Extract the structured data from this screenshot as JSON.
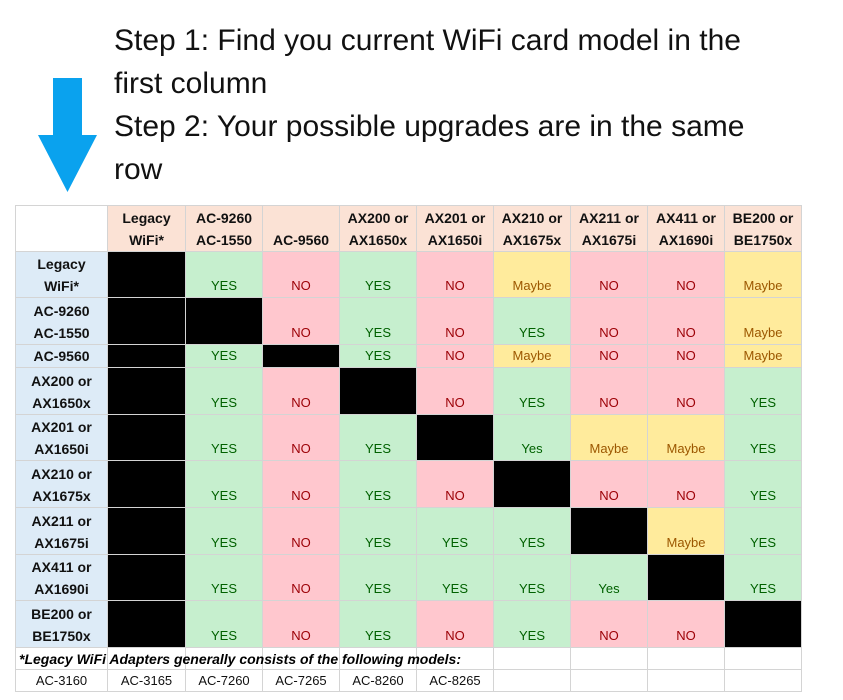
{
  "steps": [
    [
      "Step 1: Find you current WiFi card model in the",
      "first column"
    ],
    [
      "Step 2: Your possible upgrades are in the same",
      "row"
    ]
  ],
  "table": {
    "columns": [
      [
        "Legacy",
        "WiFi*"
      ],
      [
        "AC-9260",
        "AC-1550"
      ],
      [
        "AC-9560"
      ],
      [
        "AX200 or",
        "AX1650x"
      ],
      [
        "AX201 or",
        "AX1650i"
      ],
      [
        "AX210 or",
        "AX1675x"
      ],
      [
        "AX211 or",
        "AX1675i"
      ],
      [
        "AX411 or",
        "AX1690i"
      ],
      [
        "BE200 or",
        "BE1750x"
      ]
    ],
    "rows": [
      {
        "label": [
          "Legacy",
          "WiFi*"
        ],
        "cells": [
          null,
          "YES",
          "NO",
          "YES",
          "NO",
          "Maybe",
          "NO",
          "NO",
          "Maybe"
        ]
      },
      {
        "label": [
          "AC-9260",
          "AC-1550"
        ],
        "cells": [
          null,
          null,
          "NO",
          "YES",
          "NO",
          "YES",
          "NO",
          "NO",
          "Maybe"
        ]
      },
      {
        "label": [
          "AC-9560"
        ],
        "cells": [
          null,
          "YES",
          null,
          "YES",
          "NO",
          "Maybe",
          "NO",
          "NO",
          "Maybe"
        ]
      },
      {
        "label": [
          "AX200 or",
          "AX1650x"
        ],
        "cells": [
          null,
          "YES",
          "NO",
          null,
          "NO",
          "YES",
          "NO",
          "NO",
          "YES"
        ]
      },
      {
        "label": [
          "AX201 or",
          "AX1650i"
        ],
        "cells": [
          null,
          "YES",
          "NO",
          "YES",
          null,
          "Yes",
          "Maybe",
          "Maybe",
          "YES"
        ]
      },
      {
        "label": [
          "AX210 or",
          "AX1675x"
        ],
        "cells": [
          null,
          "YES",
          "NO",
          "YES",
          "NO",
          null,
          "NO",
          "NO",
          "YES"
        ]
      },
      {
        "label": [
          "AX211 or",
          "AX1675i"
        ],
        "cells": [
          null,
          "YES",
          "NO",
          "YES",
          "YES",
          "YES",
          null,
          "Maybe",
          "YES"
        ]
      },
      {
        "label": [
          "AX411 or",
          "AX1690i"
        ],
        "cells": [
          null,
          "YES",
          "NO",
          "YES",
          "YES",
          "YES",
          "Yes",
          null,
          "YES"
        ]
      },
      {
        "label": [
          "BE200 or",
          "BE1750x"
        ],
        "cells": [
          null,
          "YES",
          "NO",
          "YES",
          "NO",
          "YES",
          "NO",
          "NO",
          null
        ]
      }
    ],
    "palette": {
      "YES": {
        "fill": "#c6efce",
        "color": "#006100"
      },
      "Yes": {
        "fill": "#c6efce",
        "color": "#006100"
      },
      "NO": {
        "fill": "#ffc7ce",
        "color": "#9c0006"
      },
      "Maybe": {
        "fill": "#ffeb9c",
        "color": "#9c5700"
      }
    },
    "footnote": "*Legacy WiFi Adapters generally consists of the following models:",
    "legacy_models": [
      "AC-3160",
      "AC-3165",
      "AC-7260",
      "AC-7265",
      "AC-8260",
      "AC-8265"
    ]
  }
}
